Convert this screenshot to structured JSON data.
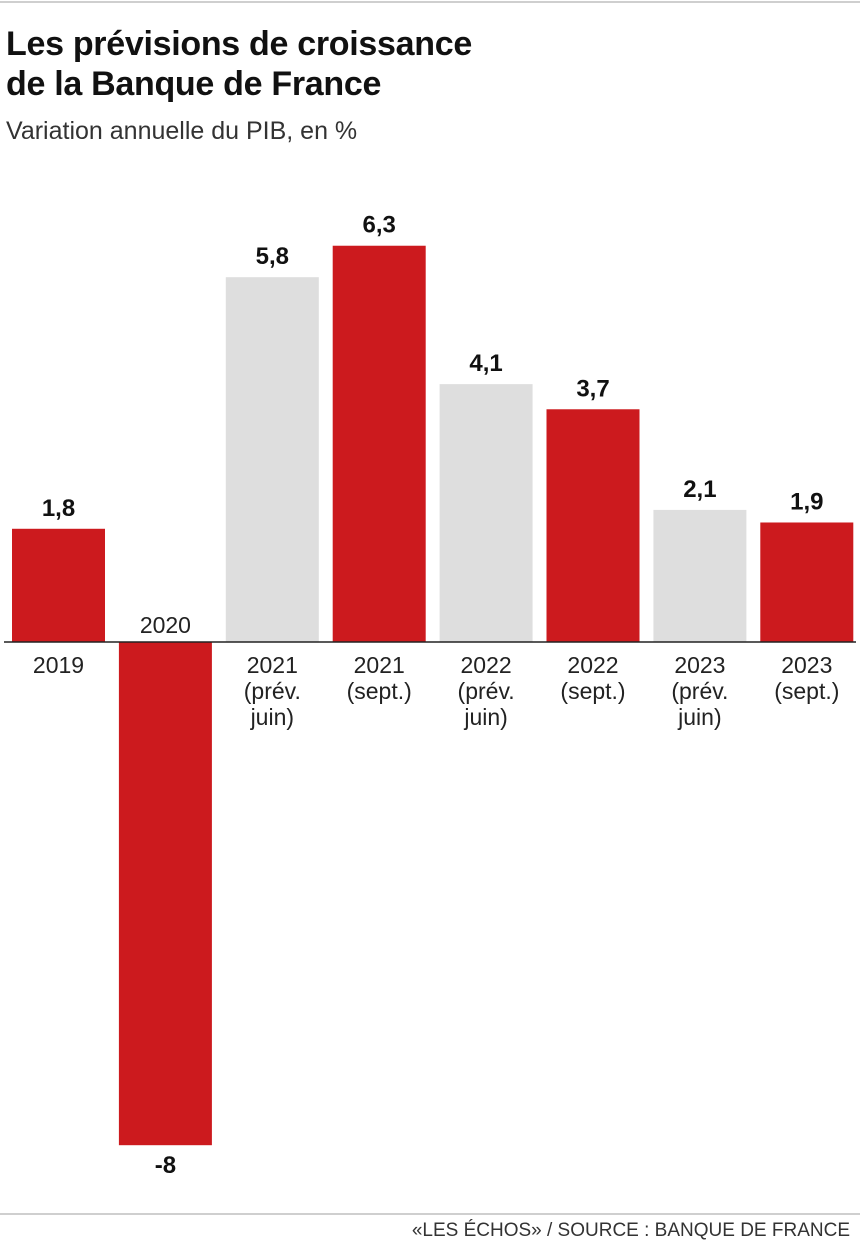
{
  "header": {
    "title_line1": "Les prévisions de croissance",
    "title_line2": "de la Banque de France",
    "subtitle": "Variation annuelle du PIB, en %"
  },
  "footer": {
    "source": "«LES ÉCHOS» / SOURCE : BANQUE DE FRANCE"
  },
  "colors": {
    "actual": "#cc1a1e",
    "forecast_june": "#dedede",
    "text": "#111111",
    "axis": "#222222"
  },
  "chart_data": {
    "type": "bar",
    "title": "Les prévisions de croissance de la Banque de France",
    "subtitle": "Variation annuelle du PIB, en %",
    "xlabel": "",
    "ylabel": "",
    "ylim": [
      -8,
      6.3
    ],
    "grid": false,
    "legend": "none",
    "categories": [
      [
        "2019"
      ],
      [
        "2020"
      ],
      [
        "2021",
        "(prév.",
        "juin)"
      ],
      [
        "2021",
        "(sept.)"
      ],
      [
        "2022",
        "(prév.",
        "juin)"
      ],
      [
        "2022",
        "(sept.)"
      ],
      [
        "2023",
        "(prév.",
        "juin)"
      ],
      [
        "2023",
        "(sept.)"
      ]
    ],
    "values": [
      1.8,
      -8,
      5.8,
      6.3,
      4.1,
      3.7,
      2.1,
      1.9
    ],
    "value_labels": [
      "1,8",
      "-8",
      "5,8",
      "6,3",
      "4,1",
      "3,7",
      "2,1",
      "1,9"
    ],
    "bar_kind": [
      "actual",
      "actual",
      "forecast_june",
      "actual",
      "forecast_june",
      "actual",
      "forecast_june",
      "actual"
    ]
  }
}
